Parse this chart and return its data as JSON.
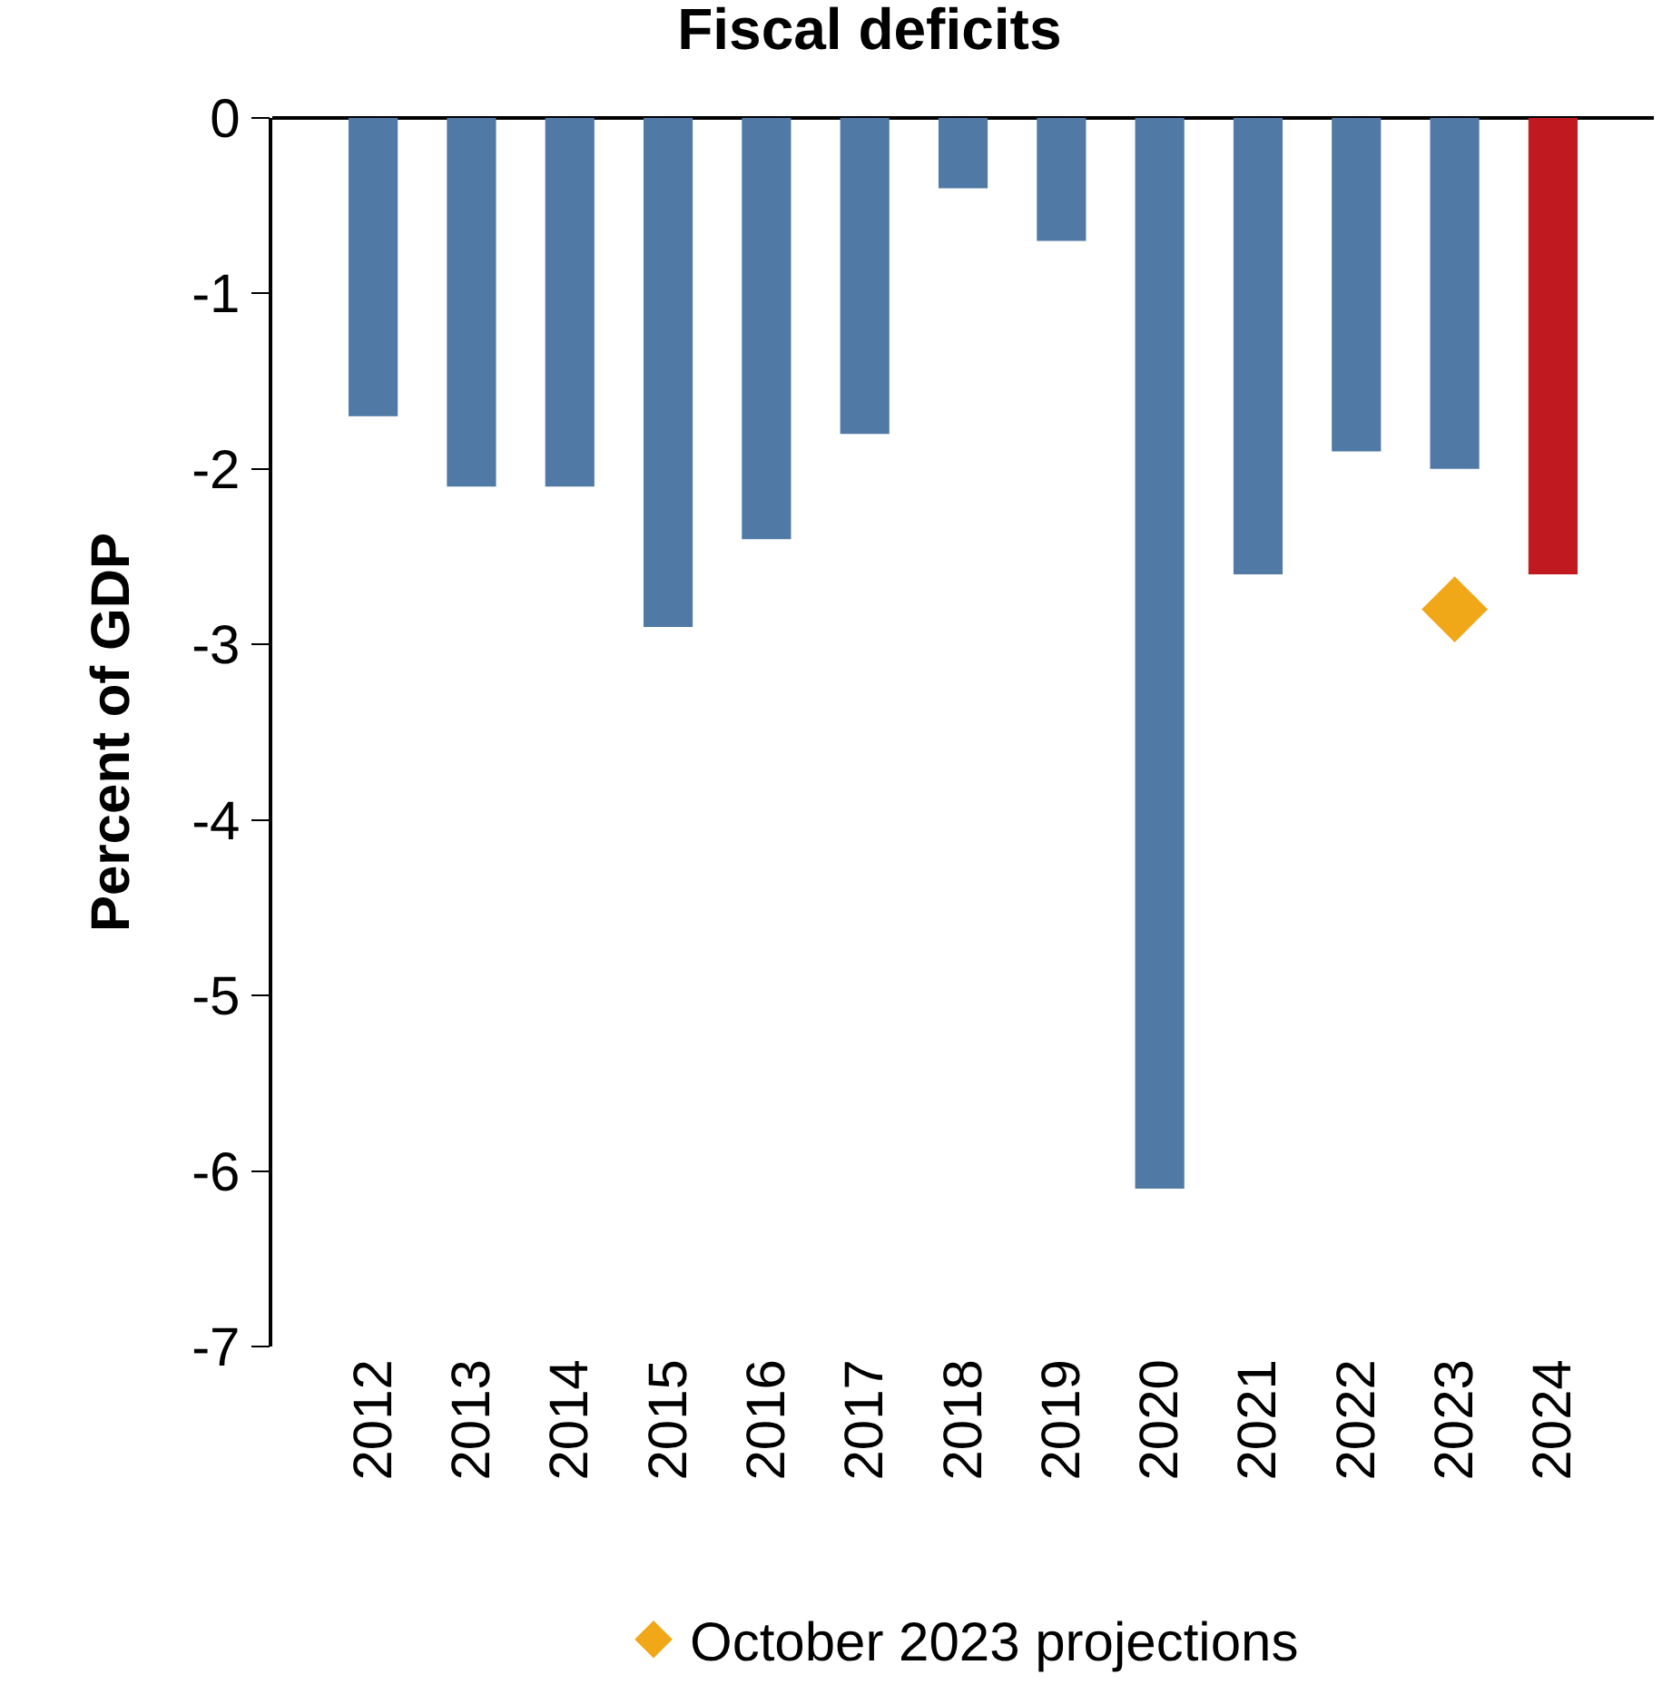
{
  "chart_data": {
    "type": "bar",
    "title": "Fiscal deficits",
    "ylabel": "Percent of GDP",
    "categories": [
      "2012",
      "2013",
      "2014",
      "2015",
      "2016",
      "2017",
      "2018",
      "2019",
      "2020",
      "2021",
      "2022",
      "2023",
      "2024"
    ],
    "series": [
      {
        "values": [
          -1.7,
          -2.1,
          -2.1,
          -2.9,
          -2.4,
          -1.8,
          -0.4,
          -0.7,
          -6.1,
          -2.6,
          -1.9,
          -2.0,
          -2.6
        ],
        "colors": [
          "#5079a5",
          "#5079a5",
          "#5079a5",
          "#5079a5",
          "#5079a5",
          "#5079a5",
          "#5079a5",
          "#5079a5",
          "#5079a5",
          "#5079a5",
          "#5079a5",
          "#5079a5",
          "#c0191f"
        ]
      },
      {
        "type": "scatter",
        "name": "October 2023 projections",
        "color": "#f0a818",
        "marker": "diamond",
        "values": [
          null,
          null,
          null,
          null,
          null,
          null,
          null,
          null,
          null,
          null,
          null,
          -2.8,
          null
        ]
      }
    ],
    "ylim": [
      -7,
      0
    ],
    "yticks": [
      -7,
      -6,
      -5,
      -4,
      -3,
      -2,
      -1,
      0
    ],
    "grid": false,
    "legend": "bottom"
  }
}
